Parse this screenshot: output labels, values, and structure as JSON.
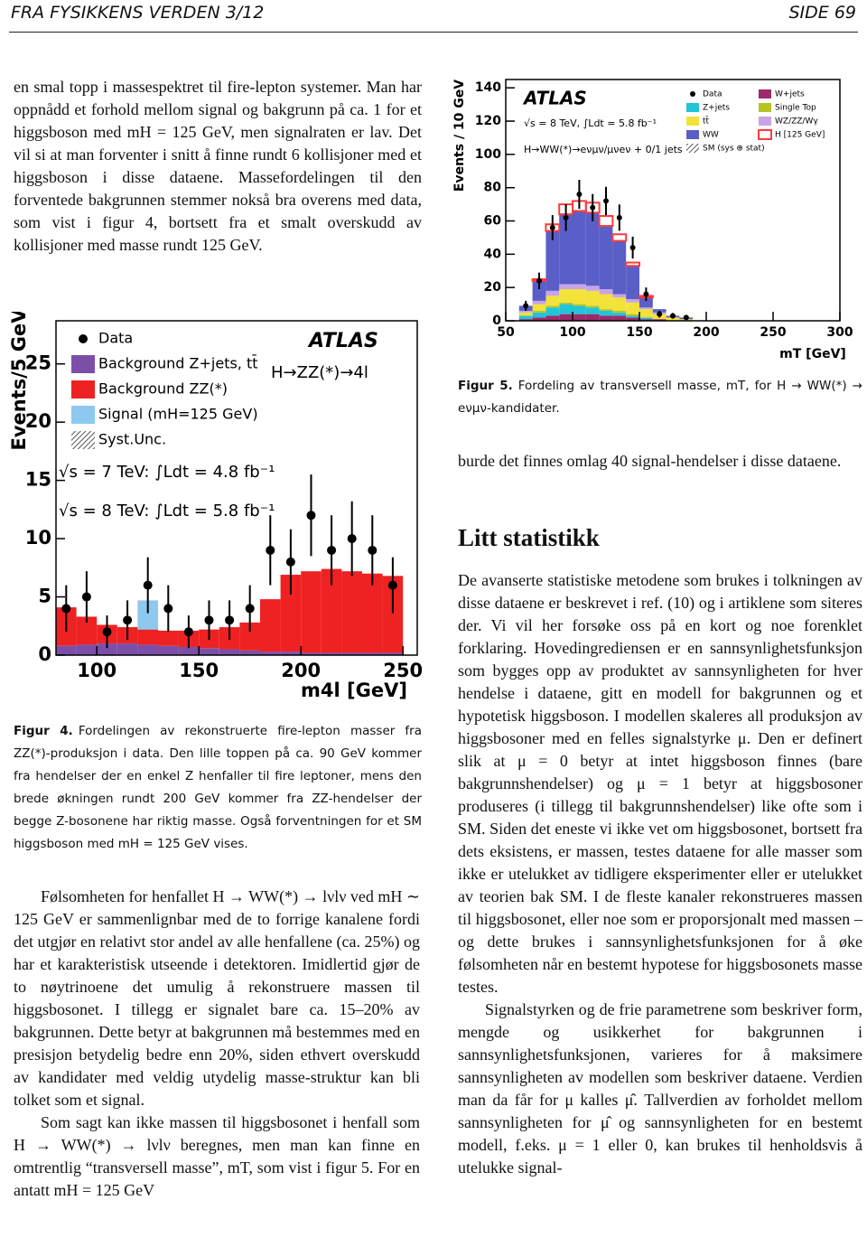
{
  "document": {
    "header": {
      "left": "FRA FYSIKKENS VERDEN 3/12",
      "right": "SIDE 69"
    },
    "left_column": {
      "intro": "en smal topp i massespektret til fire-lepton systemer. Man har oppnådd et forhold mellom signal og bakgrunn på ca. 1 for et higgsboson med mH = 125 GeV, men signalraten er lav. Det vil si at man forventer i snitt å finne rundt 6 kollisjoner med et higgsboson i disse dataene. Massefordelingen til den forventede bakgrunnen stemmer nokså bra overens med data, som vist i figur 4, bortsett fra et smalt overskudd av kollisjoner med masse rundt 125 GeV.",
      "figure4_caption": {
        "label": "Figur 4.",
        "text": "Fordelingen av rekonstruerte fire-lepton masser fra ZZ(*)-produksjon i data. Den lille toppen på ca. 90 GeV kommer fra hendelser der en enkel Z henfaller til fire leptoner, mens den brede økningen rundt 200 GeV kommer fra ZZ-hendelser der begge Z-bosonene har riktig masse. Også forventningen for et SM higgsboson med mH = 125 GeV vises."
      },
      "paragraphs": [
        "Følsomheten for henfallet H → WW(*) → lνlν ved mH ∼ 125 GeV er sammenlignbar med de to forrige kanalene fordi det utgjør en relativt stor andel av alle henfallene (ca. 25%) og har et karakteristisk utseende i detektoren. Imidlertid gjør de to nøytrinoene det umulig å rekonstruere massen til higgsbosonet. I tillegg er signalet bare ca. 15–20% av bakgrunnen. Dette betyr at bakgrunnen må bestemmes med en presisjon betydelig bedre enn 20%, siden ethvert overskudd av kandidater med veldig utydelig masse-struktur kan bli tolket som et signal.",
        "Som sagt kan ikke massen til higgsbosonet i henfall som H → WW(*) → lνlν beregnes, men man kan finne en omtrentlig “transversell masse”, mT, som vist i figur 5. For en antatt mH = 125 GeV"
      ]
    },
    "right_column": {
      "figure5_caption": {
        "label": "Figur 5.",
        "text": "Fordeling av transversell masse, mT, for H → WW(*) → eνμν-kandidater."
      },
      "continuation": "burde det finnes omlag 40 signal-hendelser i disse dataene.",
      "heading": "Litt statistikk",
      "paragraphs": [
        "De avanserte statistiske metodene som brukes i tolkningen av disse dataene er beskrevet i ref. (10) og i artiklene som siteres der. Vi vil her forsøke oss på en kort og noe forenklet forklaring. Hovedingrediensen er en sannsynlighetsfunksjon som bygges opp av produktet av sannsynligheten for hver hendelse i dataene, gitt en modell for bakgrunnen og et hypotetisk higgsboson. I modellen skaleres all produksjon av higgsbosoner med en felles signalstyrke μ. Den er definert slik at μ = 0 betyr at intet higgsboson finnes (bare bakgrunnshendelser) og μ = 1 betyr at higgsbosoner produseres (i tillegg til bakgrunnshendelser) like ofte som i SM. Siden det eneste vi ikke vet om higgsbosonet, bortsett fra dets eksistens, er massen, testes dataene for alle masser som ikke er utelukket av tidligere eksperimenter eller er utelukket av teorien bak SM. I de fleste kanaler rekonstrueres massen til higgsbosonet, eller noe som er proporsjonalt med massen – og dette brukes i sannsynlighetsfunksjonen for å øke følsomheten når en bestemt hypotese for higgsbosonets masse testes.",
        "Signalstyrken og de frie parametrene som beskriver form, mengde og usikkerhet for bakgrunnen i sannsynlighetsfunksjonen, varieres for å maksimere sannsynligheten av modellen som beskriver dataene. Verdien man da får for μ kalles μ̂. Tallverdien av forholdet mellom sannsynligheten for μ̂ og sannsynligheten for en bestemt modell, f.eks. μ = 1 eller 0, kan brukes til henholdsvis å utelukke signal-"
      ]
    }
  },
  "chart_data": [
    {
      "type": "histogram",
      "experiment": "ATLAS",
      "channel": "H→ZZ(*)→4l",
      "annotations": [
        "√s = 7 TeV: ∫Ldt = 4.8 fb⁻¹",
        "√s = 8 TeV: ∫Ldt = 5.8 fb⁻¹"
      ],
      "x_label": "m4l [GeV]",
      "y_label": "Events/5 GeV",
      "bins": [
        80,
        90,
        100,
        110,
        120,
        130,
        140,
        150,
        160,
        170,
        180,
        190,
        200,
        210,
        220,
        230,
        240,
        250
      ],
      "series": [
        {
          "name": "Background Z+jets, tt̄",
          "color": "#7b4fa8",
          "values": [
            0.8,
            0.9,
            1.0,
            1.0,
            0.9,
            0.8,
            0.7,
            0.6,
            0.5,
            0.4,
            0.3,
            0.3,
            0.2,
            0.2,
            0.2,
            0.2,
            0.2
          ]
        },
        {
          "name": "Background ZZ(*)",
          "color": "#ee2222",
          "values": [
            3.3,
            2.4,
            1.6,
            1.4,
            1.3,
            1.3,
            1.4,
            1.6,
            1.9,
            2.4,
            4.5,
            6.6,
            7.0,
            7.2,
            7.0,
            6.8,
            6.6
          ]
        },
        {
          "name": "Signal (mH=125 GeV)",
          "color": "#8ec8ee",
          "values": [
            0,
            0,
            0,
            0,
            2.5,
            0,
            0,
            0,
            0,
            0,
            0,
            0,
            0,
            0,
            0,
            0,
            0
          ]
        }
      ],
      "data": {
        "name": "Data",
        "values": [
          4,
          5,
          2,
          3,
          6,
          4,
          2,
          3,
          3,
          4,
          9,
          8,
          12,
          9,
          10,
          9,
          6
        ],
        "errors": [
          2,
          2.2,
          1.4,
          1.7,
          2.4,
          2,
          1.4,
          1.7,
          1.7,
          2,
          3,
          2.8,
          3.5,
          3,
          3.2,
          3,
          2.4
        ]
      },
      "uncertainty_label": "Syst.Unc.",
      "xlim": [
        80,
        257
      ],
      "ylim": [
        0,
        28.7
      ],
      "xticks": [
        100,
        150,
        200,
        250
      ],
      "yticks": [
        0,
        5,
        10,
        15,
        20,
        25
      ],
      "legend": "upper left"
    },
    {
      "type": "histogram",
      "experiment": "ATLAS",
      "channel": "H→WW(*)→eνμν/μνeν + 0/1 jets",
      "annotations": [
        "√s = 8 TeV, ∫Ldt = 5.8 fb⁻¹"
      ],
      "x_label": "mT [GeV]",
      "y_label": "Events / 10 GeV",
      "bins": [
        60,
        70,
        80,
        90,
        100,
        110,
        120,
        130,
        140,
        150,
        160,
        170,
        180,
        190
      ],
      "series": [
        {
          "name": "W+jets",
          "color": "#9c2a6a",
          "values": [
            1,
            2,
            3,
            4,
            4,
            4,
            3,
            3,
            2,
            1,
            1,
            0,
            0
          ]
        },
        {
          "name": "Z+jets",
          "color": "#22c4d8",
          "values": [
            2,
            3,
            5,
            6,
            5,
            4,
            3,
            2,
            1,
            1,
            0,
            0,
            0
          ]
        },
        {
          "name": "Single Top",
          "color": "#b6c424",
          "values": [
            0,
            1,
            1,
            1,
            1,
            1,
            1,
            1,
            1,
            0,
            0,
            0,
            0
          ]
        },
        {
          "name": "tt̄",
          "color": "#f2e23a",
          "values": [
            2,
            4,
            6,
            8,
            9,
            9,
            9,
            8,
            7,
            5,
            3,
            2,
            1
          ]
        },
        {
          "name": "WZ/ZZ/Wγ",
          "color": "#c9a4e6",
          "values": [
            1,
            2,
            3,
            3,
            3,
            3,
            3,
            2,
            2,
            1,
            1,
            0,
            0
          ]
        },
        {
          "name": "WW",
          "color": "#5a5fc8",
          "values": [
            3,
            12,
            36,
            42,
            44,
            44,
            38,
            32,
            20,
            6,
            2,
            1,
            1
          ]
        },
        {
          "name": "H [125 GeV]",
          "color": "#ff3b3b",
          "outline": true,
          "values": [
            0,
            1,
            4,
            6,
            6,
            6,
            6,
            4,
            2,
            1,
            0,
            0,
            0
          ]
        }
      ],
      "data": {
        "name": "Data",
        "values": [
          9,
          24,
          56,
          62,
          76,
          68,
          72,
          62,
          44,
          16,
          4,
          3,
          2
        ],
        "errors": [
          3,
          5,
          7.5,
          8,
          8.7,
          8.2,
          8.5,
          7.9,
          6.6,
          4,
          2,
          1.7,
          1.4
        ]
      },
      "uncertainty_label": "SM (sys ⊕ stat)",
      "xlim": [
        50,
        300
      ],
      "ylim": [
        0,
        145
      ],
      "xticks": [
        50,
        100,
        150,
        200,
        250,
        300
      ],
      "yticks": [
        0,
        20,
        40,
        60,
        80,
        100,
        120,
        140
      ],
      "legend": "upper right"
    }
  ]
}
